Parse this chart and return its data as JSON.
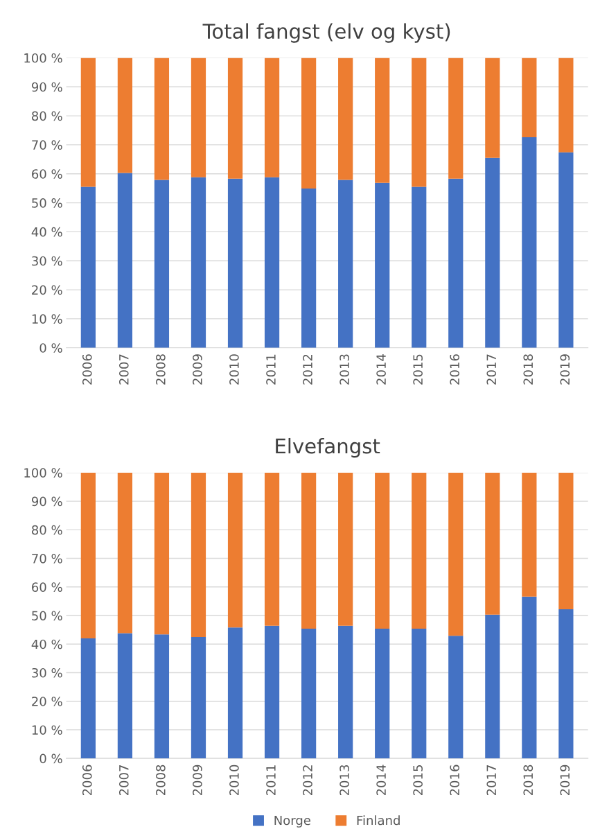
{
  "chart_data": [
    {
      "type": "bar",
      "title": "Total fangst (elv og kyst)",
      "stacked": true,
      "grid": "y",
      "categories": [
        "2006",
        "2007",
        "2008",
        "2009",
        "2010",
        "2011",
        "2012",
        "2013",
        "2014",
        "2015",
        "2016",
        "2017",
        "2018",
        "2019"
      ],
      "series": [
        {
          "color": "#4472c4",
          "values": [
            55.5,
            60.3,
            57.9,
            58.8,
            58.3,
            58.8,
            54.9,
            57.9,
            56.9,
            55.5,
            58.3,
            65.5,
            72.6,
            67.4
          ]
        },
        {
          "color": "#ed7d31",
          "values": [
            44.5,
            39.7,
            42.1,
            41.2,
            41.7,
            41.2,
            45.1,
            42.1,
            43.1,
            44.5,
            41.7,
            34.5,
            27.4,
            32.6
          ]
        }
      ],
      "ylim": [
        0,
        100
      ],
      "yticks": [
        {
          "value": 0,
          "label": "0 %"
        },
        {
          "value": 10,
          "label": "10 %"
        },
        {
          "value": 20,
          "label": "20 %"
        },
        {
          "value": 30,
          "label": "30 %"
        },
        {
          "value": 40,
          "label": "40 %"
        },
        {
          "value": 50,
          "label": "50 %"
        },
        {
          "value": 60,
          "label": "60 %"
        },
        {
          "value": 70,
          "label": "70 %"
        },
        {
          "value": 80,
          "label": "80 %"
        },
        {
          "value": 90,
          "label": "90 %"
        },
        {
          "value": 100,
          "label": "100 %"
        }
      ]
    },
    {
      "type": "bar",
      "title": "Elvefangst",
      "stacked": true,
      "grid": "y",
      "legend": "bottom",
      "categories": [
        "2006",
        "2007",
        "2008",
        "2009",
        "2010",
        "2011",
        "2012",
        "2013",
        "2014",
        "2015",
        "2016",
        "2017",
        "2018",
        "2019"
      ],
      "series": [
        {
          "name": "Norge",
          "color": "#4472c4",
          "values": [
            42.0,
            43.8,
            43.4,
            42.5,
            45.8,
            46.4,
            45.4,
            46.4,
            45.4,
            45.4,
            42.9,
            50.3,
            56.6,
            52.2
          ]
        },
        {
          "name": "Finland",
          "color": "#ed7d31",
          "values": [
            58.0,
            56.2,
            56.6,
            57.5,
            54.2,
            53.6,
            54.6,
            53.6,
            54.6,
            54.6,
            57.1,
            49.7,
            43.4,
            47.8
          ]
        }
      ],
      "ylim": [
        0,
        100
      ],
      "yticks": [
        {
          "value": 0,
          "label": "0 %"
        },
        {
          "value": 10,
          "label": "10 %"
        },
        {
          "value": 20,
          "label": "20 %"
        },
        {
          "value": 30,
          "label": "30 %"
        },
        {
          "value": 40,
          "label": "40 %"
        },
        {
          "value": 50,
          "label": "50 %"
        },
        {
          "value": 60,
          "label": "60 %"
        },
        {
          "value": 70,
          "label": "70 %"
        },
        {
          "value": 80,
          "label": "80 %"
        },
        {
          "value": 90,
          "label": "90 %"
        },
        {
          "value": 100,
          "label": "100 %"
        }
      ]
    }
  ]
}
